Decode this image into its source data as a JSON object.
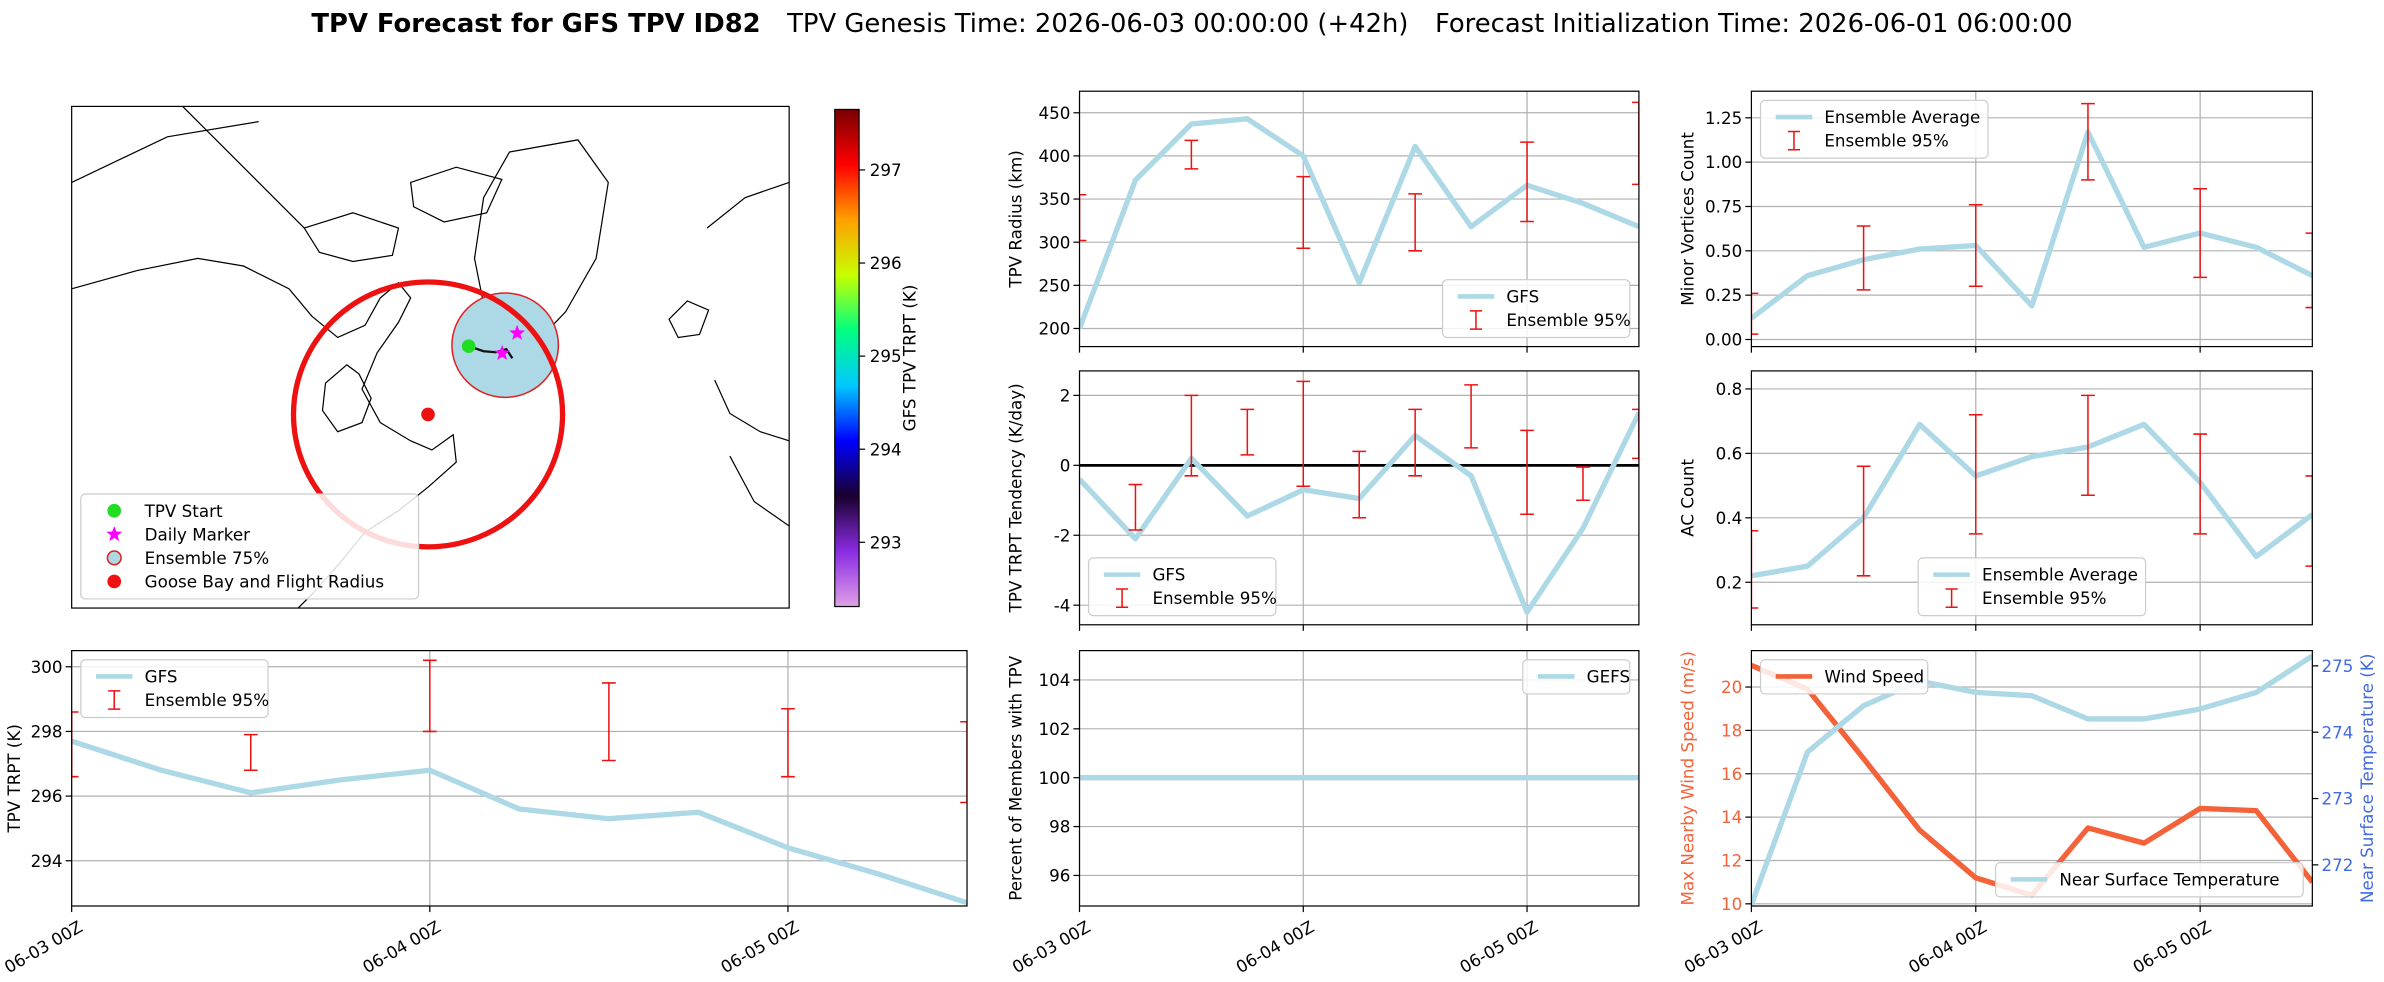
{
  "chart_data": [
    {
      "type": "map",
      "xlim": [
        -120,
        0
      ],
      "ylim": [
        34,
        84
      ],
      "legend": "lower left",
      "markers": [
        {
          "name": "TPV Start",
          "marker": "circle",
          "color": "#22dd22",
          "lon": [
            -53.6
          ],
          "lat": [
            60.1
          ]
        },
        {
          "name": "Daily Marker",
          "marker": "star",
          "color": "#ff00ff",
          "lon": [
            -45.5,
            -48.0
          ],
          "lat": [
            61.4,
            59.4
          ]
        },
        {
          "name": "Ensemble 75%",
          "marker": "region",
          "color": "#add8e6",
          "edgecolor": "#dd2222",
          "lon": [
            -47.5
          ],
          "lat": [
            60.2
          ],
          "rx": 8.9,
          "ry": 5.2
        },
        {
          "name": "Goose Bay and Flight Radius",
          "marker": "circle",
          "color": "#ee1111",
          "lon": [
            -60.4
          ],
          "lat": [
            53.3
          ],
          "radius_lon": 22.5,
          "radius_lat": 13.2
        }
      ],
      "track": {
        "lon": [
          -53.6,
          -51.1,
          -49.1,
          -47.3,
          -46.3
        ],
        "lat": [
          60.1,
          59.6,
          59.5,
          59.8,
          58.9
        ],
        "color": "#111111"
      },
      "colorbar": {
        "label": "GFS TPV TRPT (K)",
        "lim": [
          292.31,
          297.65
        ],
        "ticks": [
          293,
          294,
          295,
          296,
          297
        ],
        "colors": [
          "#e0a0e8",
          "#8a2be2",
          "#1a0030",
          "#0000ff",
          "#00c8ff",
          "#00ff80",
          "#c8ff00",
          "#ffa000",
          "#ff0000",
          "#7a0000"
        ]
      }
    },
    {
      "type": "line",
      "ylabel": "TPV TRPT (K)",
      "xlim": [
        0,
        60
      ],
      "xticks": [
        {
          "value": 0,
          "label": "06-03 00Z"
        },
        {
          "value": 24,
          "label": "06-04 00Z"
        },
        {
          "value": 48,
          "label": "06-05 00Z"
        }
      ],
      "ylim": [
        292.6,
        300.5
      ],
      "yticks": [
        294,
        296,
        298,
        300
      ],
      "grid": true,
      "legend": "upper left",
      "x": [
        0,
        6,
        12,
        18,
        24,
        30,
        36,
        42,
        48,
        54,
        60
      ],
      "series": [
        {
          "name": "GFS",
          "color": "#add8e6",
          "values": [
            297.7,
            296.8,
            296.1,
            296.5,
            296.8,
            295.6,
            295.3,
            295.5,
            294.4,
            293.6,
            292.7
          ]
        }
      ],
      "errorbars": {
        "name": "Ensemble 95%",
        "color": "#ee1111",
        "x": [
          0,
          12,
          24,
          36,
          48,
          60
        ],
        "low": [
          296.6,
          296.8,
          298.0,
          297.1,
          296.6,
          295.8
        ],
        "high": [
          298.6,
          297.9,
          300.2,
          299.5,
          298.7,
          298.3
        ]
      }
    },
    {
      "type": "line",
      "ylabel": "TPV Radius (km)",
      "xlim": [
        0,
        60
      ],
      "xticks": [
        0,
        24,
        48
      ],
      "ylim": [
        179,
        475
      ],
      "yticks": [
        200,
        250,
        300,
        350,
        400,
        450
      ],
      "grid": true,
      "legend": "lower right",
      "x": [
        0,
        6,
        12,
        18,
        24,
        30,
        36,
        42,
        48,
        54,
        60
      ],
      "series": [
        {
          "name": "GFS",
          "color": "#add8e6",
          "values": [
            200,
            372,
            437,
            443,
            400,
            253,
            411,
            318,
            366,
            345,
            318
          ]
        }
      ],
      "errorbars": {
        "name": "Ensemble 95%",
        "color": "#ee1111",
        "x": [
          0,
          12,
          24,
          36,
          48,
          60
        ],
        "low": [
          302,
          385,
          293,
          290,
          324,
          367
        ],
        "high": [
          355,
          418,
          376,
          356,
          416,
          462
        ]
      }
    },
    {
      "type": "line",
      "ylabel": "TPV TRPT Tendency (K/day)",
      "xlim": [
        0,
        60
      ],
      "xticks": [
        0,
        24,
        48
      ],
      "ylim": [
        -4.56,
        2.7
      ],
      "yticks": [
        -4,
        -2,
        0,
        2
      ],
      "grid": true,
      "legend": "lower left",
      "hline": 0,
      "x": [
        0,
        6,
        12,
        18,
        24,
        30,
        36,
        42,
        48,
        54,
        60
      ],
      "series": [
        {
          "name": "GFS",
          "color": "#add8e6",
          "values": [
            -0.4,
            -2.1,
            0.2,
            -1.45,
            -0.7,
            -0.95,
            0.85,
            -0.3,
            -4.2,
            -1.8,
            1.5
          ]
        }
      ],
      "errorbars": {
        "name": "Ensemble 95%",
        "color": "#ee1111",
        "x": [
          6,
          12,
          18,
          24,
          30,
          36,
          42,
          48,
          54,
          60
        ],
        "low": [
          -1.85,
          -0.3,
          0.3,
          -0.6,
          -1.5,
          -0.3,
          0.5,
          -1.4,
          -1.0,
          0.2
        ],
        "high": [
          -0.55,
          2.0,
          1.6,
          2.4,
          0.4,
          1.6,
          2.3,
          1.0,
          -0.05,
          1.6
        ]
      }
    },
    {
      "type": "line",
      "ylabel": "Percent of Members with TPV",
      "xlim": [
        0,
        60
      ],
      "xticks": [
        {
          "value": 0,
          "label": "06-03 00Z"
        },
        {
          "value": 24,
          "label": "06-04 00Z"
        },
        {
          "value": 48,
          "label": "06-05 00Z"
        }
      ],
      "ylim": [
        94.75,
        105.2
      ],
      "yticks": [
        96,
        98,
        100,
        102,
        104
      ],
      "grid": true,
      "legend": "upper right",
      "x": [
        0,
        6,
        12,
        18,
        24,
        30,
        36,
        42,
        48,
        54,
        60
      ],
      "series": [
        {
          "name": "GEFS",
          "color": "#add8e6",
          "values": [
            100,
            100,
            100,
            100,
            100,
            100,
            100,
            100,
            100,
            100,
            100
          ]
        }
      ]
    },
    {
      "type": "line",
      "ylabel": "Minor Vortices Count",
      "xlim": [
        0,
        60
      ],
      "xticks": [
        0,
        24,
        48
      ],
      "ylim": [
        -0.04,
        1.4
      ],
      "yticks": [
        {
          "value": 0,
          "label": "0.00"
        },
        0.25,
        {
          "value": 0.5,
          "label": "0.50"
        },
        0.75,
        {
          "value": 1,
          "label": "1.00"
        },
        1.25
      ],
      "grid": true,
      "legend": "upper left",
      "x": [
        0,
        6,
        12,
        18,
        24,
        30,
        36,
        42,
        48,
        54,
        60
      ],
      "series": [
        {
          "name": "Ensemble Average",
          "color": "#add8e6",
          "values": [
            0.12,
            0.36,
            0.45,
            0.51,
            0.53,
            0.19,
            1.17,
            0.52,
            0.6,
            0.52,
            0.36
          ]
        }
      ],
      "errorbars": {
        "name": "Ensemble 95%",
        "color": "#ee1111",
        "x": [
          0,
          12,
          24,
          36,
          48,
          60
        ],
        "low": [
          0.03,
          0.28,
          0.3,
          0.9,
          0.35,
          0.18
        ],
        "high": [
          0.26,
          0.64,
          0.76,
          1.33,
          0.85,
          0.6
        ]
      }
    },
    {
      "type": "line",
      "ylabel": "AC Count",
      "xlim": [
        0,
        60
      ],
      "xticks": [
        0,
        24,
        48
      ],
      "ylim": [
        0.068,
        0.856
      ],
      "yticks": [
        0.2,
        0.4,
        0.6,
        0.8
      ],
      "grid": true,
      "legend": "lower center",
      "x": [
        0,
        6,
        12,
        18,
        24,
        30,
        36,
        42,
        48,
        54,
        60
      ],
      "series": [
        {
          "name": "Ensemble Average",
          "color": "#add8e6",
          "values": [
            0.22,
            0.25,
            0.4,
            0.69,
            0.53,
            0.59,
            0.62,
            0.69,
            0.51,
            0.28,
            0.41
          ]
        }
      ],
      "errorbars": {
        "name": "Ensemble 95%",
        "color": "#ee1111",
        "x": [
          0,
          12,
          24,
          36,
          48,
          60
        ],
        "low": [
          0.12,
          0.22,
          0.35,
          0.47,
          0.35,
          0.25
        ],
        "high": [
          0.36,
          0.56,
          0.72,
          0.78,
          0.66,
          0.53
        ]
      }
    },
    {
      "type": "line",
      "ylabel": "Max Nearby Wind Speed (m/s)",
      "ylabel_color": "#f4623a",
      "y2label": "Near Surface Temperature (K)",
      "y2label_color": "#4169e1",
      "xlim": [
        0,
        60
      ],
      "xticks": [
        {
          "value": 0,
          "label": "06-03 00Z"
        },
        {
          "value": 24,
          "label": "06-04 00Z"
        },
        {
          "value": 48,
          "label": "06-05 00Z"
        }
      ],
      "ylim": [
        9.9,
        21.68
      ],
      "yticks": [
        10,
        12,
        14,
        16,
        18,
        20
      ],
      "y2lim": [
        271.38,
        275.23
      ],
      "y2ticks": [
        272,
        273,
        274,
        275
      ],
      "grid": true,
      "x": [
        0,
        6,
        12,
        18,
        24,
        30,
        36,
        42,
        48,
        54,
        60
      ],
      "series": [
        {
          "name": "Wind Speed",
          "color": "#f4623a",
          "legend": "upper left",
          "values": [
            21.0,
            19.9,
            16.7,
            13.4,
            11.2,
            10.4,
            13.5,
            12.8,
            14.4,
            14.3,
            11.0
          ]
        },
        {
          "name": "Near Surface Temperature",
          "color": "#add8e6",
          "axis": "y2",
          "legend": "lower right",
          "values": [
            271.4,
            273.7,
            274.4,
            274.77,
            274.6,
            274.55,
            274.2,
            274.2,
            274.35,
            274.6,
            275.15
          ]
        }
      ]
    }
  ],
  "title": {
    "bold": "TPV Forecast for GFS TPV ID82",
    "genesis": "TPV Genesis Time: 2026-06-03 00:00:00 (+42h)",
    "init": "Forecast Initialization Time: 2026-06-01 06:00:00"
  }
}
